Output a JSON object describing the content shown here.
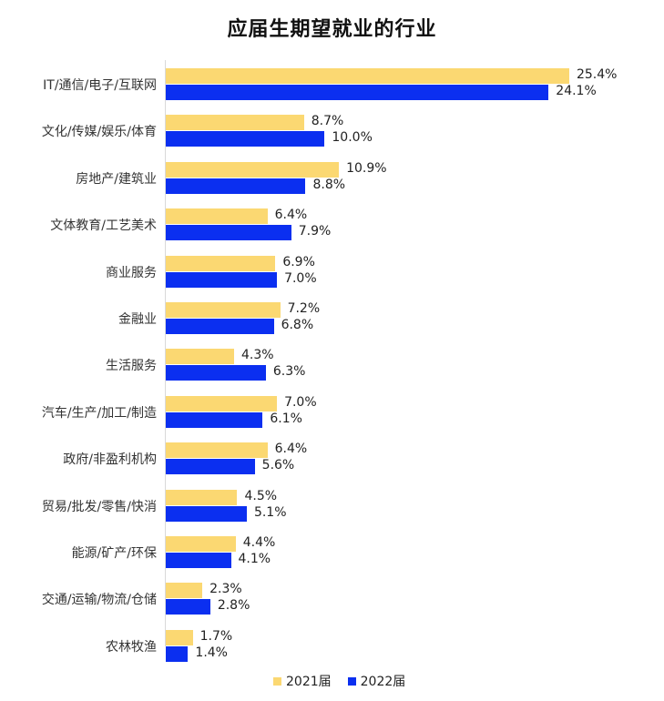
{
  "title": "应届生期望就业的行业",
  "legend": [
    {
      "label": "2021届",
      "color": "#fbd872"
    },
    {
      "label": "2022届",
      "color": "#0b2ff0"
    }
  ],
  "rows": [
    {
      "category": "IT/通信/电子/互联网",
      "v2021": 25.4,
      "v2022": 24.1,
      "l2021": "25.4%",
      "l2022": "24.1%"
    },
    {
      "category": "文化/传媒/娱乐/体育",
      "v2021": 8.7,
      "v2022": 10.0,
      "l2021": "8.7%",
      "l2022": "10.0%"
    },
    {
      "category": "房地产/建筑业",
      "v2021": 10.9,
      "v2022": 8.8,
      "l2021": "10.9%",
      "l2022": "8.8%"
    },
    {
      "category": "文体教育/工艺美术",
      "v2021": 6.4,
      "v2022": 7.9,
      "l2021": "6.4%",
      "l2022": "7.9%"
    },
    {
      "category": "商业服务",
      "v2021": 6.9,
      "v2022": 7.0,
      "l2021": "6.9%",
      "l2022": "7.0%"
    },
    {
      "category": "金融业",
      "v2021": 7.2,
      "v2022": 6.8,
      "l2021": "7.2%",
      "l2022": "6.8%"
    },
    {
      "category": "生活服务",
      "v2021": 4.3,
      "v2022": 6.3,
      "l2021": "4.3%",
      "l2022": "6.3%"
    },
    {
      "category": "汽车/生产/加工/制造",
      "v2021": 7.0,
      "v2022": 6.1,
      "l2021": "7.0%",
      "l2022": "6.1%"
    },
    {
      "category": "政府/非盈利机构",
      "v2021": 6.4,
      "v2022": 5.6,
      "l2021": "6.4%",
      "l2022": "5.6%"
    },
    {
      "category": "贸易/批发/零售/快消",
      "v2021": 4.5,
      "v2022": 5.1,
      "l2021": "4.5%",
      "l2022": "5.1%"
    },
    {
      "category": "能源/矿产/环保",
      "v2021": 4.4,
      "v2022": 4.1,
      "l2021": "4.4%",
      "l2022": "4.1%"
    },
    {
      "category": "交通/运输/物流/仓储",
      "v2021": 2.3,
      "v2022": 2.8,
      "l2021": "2.3%",
      "l2022": "2.8%"
    },
    {
      "category": "农林牧渔",
      "v2021": 1.7,
      "v2022": 1.4,
      "l2021": "1.7%",
      "l2022": "1.4%"
    }
  ],
  "chart_data": {
    "type": "bar",
    "orientation": "horizontal",
    "title": "应届生期望就业的行业",
    "xlabel": "",
    "ylabel": "",
    "categories": [
      "IT/通信/电子/互联网",
      "文化/传媒/娱乐/体育",
      "房地产/建筑业",
      "文体教育/工艺美术",
      "商业服务",
      "金融业",
      "生活服务",
      "汽车/生产/加工/制造",
      "政府/非盈利机构",
      "贸易/批发/零售/快消",
      "能源/矿产/环保",
      "交通/运输/物流/仓储",
      "农林牧渔"
    ],
    "series": [
      {
        "name": "2021届",
        "color": "#fbd872",
        "values": [
          25.4,
          8.7,
          10.9,
          6.4,
          6.9,
          7.2,
          4.3,
          7.0,
          6.4,
          4.5,
          4.4,
          2.3,
          1.7
        ]
      },
      {
        "name": "2022届",
        "color": "#0b2ff0",
        "values": [
          24.1,
          10.0,
          8.8,
          7.9,
          7.0,
          6.8,
          6.3,
          6.1,
          5.6,
          5.1,
          4.1,
          2.8,
          1.4
        ]
      }
    ],
    "value_format": "percent",
    "data_labels": true,
    "grid": false,
    "legend_position": "bottom"
  }
}
